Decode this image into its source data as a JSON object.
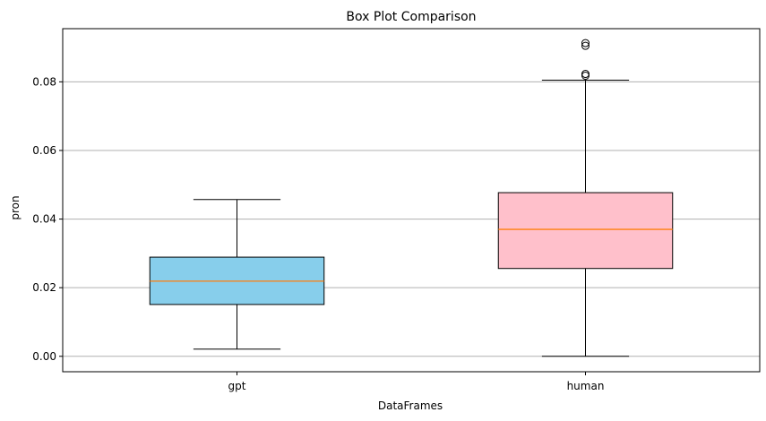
{
  "chart_data": {
    "type": "box",
    "title": "Box Plot Comparison",
    "xlabel": "DataFrames",
    "ylabel": "pron",
    "categories": [
      "gpt",
      "human"
    ],
    "ylim": [
      -0.0045,
      0.0955
    ],
    "yticks": [
      "0.00",
      "0.02",
      "0.04",
      "0.06",
      "0.08"
    ],
    "grid": "y",
    "boxes": [
      {
        "name": "gpt",
        "color": "#87CEEB",
        "whisker_low": 0.0021,
        "q1": 0.0151,
        "median": 0.0219,
        "q3": 0.0289,
        "whisker_high": 0.0457,
        "outliers": []
      },
      {
        "name": "human",
        "color": "#FFC0CB",
        "whisker_low": 0.0,
        "q1": 0.0256,
        "median": 0.037,
        "q3": 0.0477,
        "whisker_high": 0.0805,
        "outliers": [
          0.0818,
          0.0823,
          0.0905,
          0.0913
        ]
      }
    ],
    "median_color": "#FF7F0E",
    "grid_color": "#B0B0B0"
  }
}
